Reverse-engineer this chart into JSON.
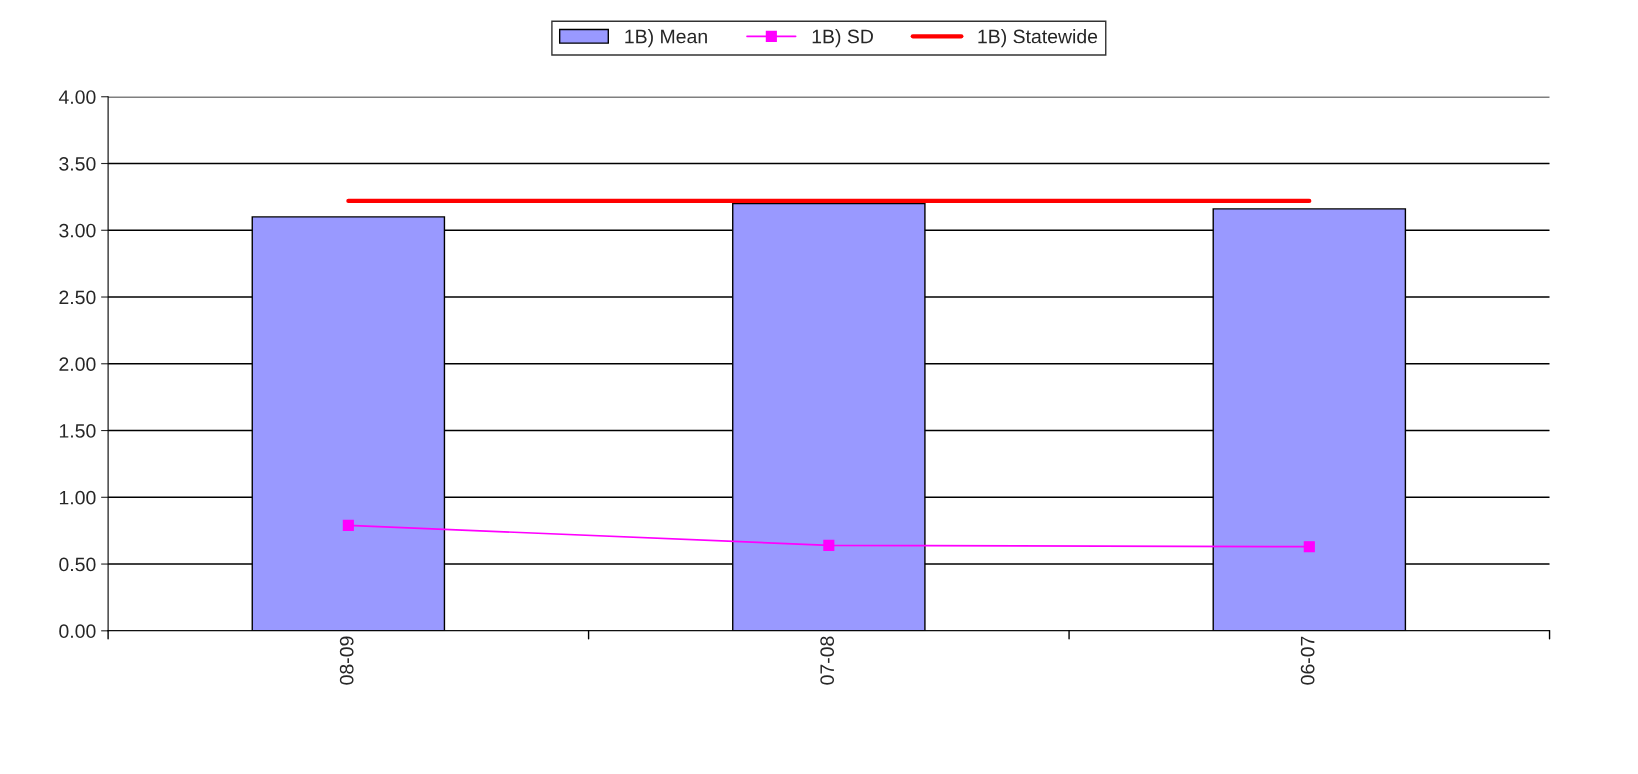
{
  "chart_data": {
    "type": "bar",
    "categories": [
      "08-09",
      "07-08",
      "06-07"
    ],
    "series": [
      {
        "name": "1B) Mean",
        "color": "#9999ff",
        "values": [
          3.1,
          3.2,
          3.16
        ]
      },
      {
        "name": "1B) SD",
        "type": "line",
        "color": "#ff00ff",
        "marker": "square",
        "values": [
          0.79,
          0.64,
          0.63
        ]
      },
      {
        "name": "1B) Statewide",
        "type": "line",
        "color": "#ff0000",
        "marker": "none",
        "values": [
          3.22,
          3.22,
          3.22
        ]
      }
    ],
    "ylim": [
      0,
      4
    ],
    "yticks": [
      {
        "value": 0,
        "label": "0.00"
      },
      {
        "value": 0.5,
        "label": "0.50"
      },
      {
        "value": 1,
        "label": "1.00"
      },
      {
        "value": 1.5,
        "label": "1.50"
      },
      {
        "value": 2,
        "label": "2.00"
      },
      {
        "value": 2.5,
        "label": "2.50"
      },
      {
        "value": 3,
        "label": "3.00"
      },
      {
        "value": 3.5,
        "label": "3.50"
      },
      {
        "value": 4,
        "label": "4.00"
      }
    ],
    "grid": "y",
    "legend": "top"
  }
}
